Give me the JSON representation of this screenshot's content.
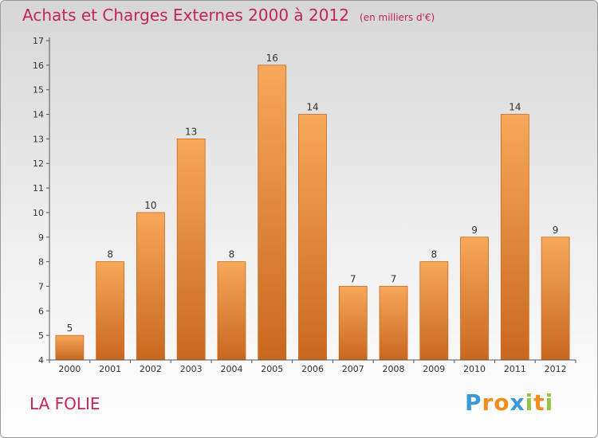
{
  "chart_data": {
    "type": "bar",
    "title": "Achats et Charges Externes 2000 à 2012",
    "subtitle": "(en milliers d'€)",
    "categories": [
      "2000",
      "2001",
      "2002",
      "2003",
      "2004",
      "2005",
      "2006",
      "2007",
      "2008",
      "2009",
      "2010",
      "2011",
      "2012"
    ],
    "values": [
      5,
      8,
      10,
      13,
      8,
      16,
      14,
      7,
      7,
      8,
      9,
      14,
      9
    ],
    "ylim": [
      4,
      17
    ],
    "yticks": [
      "4",
      "5",
      "6",
      "7",
      "8",
      "9",
      "10",
      "11",
      "12",
      "13",
      "14",
      "15",
      "16",
      "17"
    ],
    "grid": false,
    "bar_color": "#e8862f",
    "bar_highlight": "#f7a85a",
    "bar_shadow": "#c8681e"
  },
  "location": "LA FOLIE",
  "logo": {
    "letters": [
      {
        "char": "P",
        "color": "#3a9ad9"
      },
      {
        "char": "r",
        "color": "#f28c1e"
      },
      {
        "char": "o",
        "color": "#f28c1e"
      },
      {
        "char": "x",
        "color": "#3a9ad9"
      },
      {
        "char": "i",
        "color": "#8ec641"
      },
      {
        "char": "t",
        "color": "#f28c1e"
      },
      {
        "char": "i",
        "color": "#8ec641"
      }
    ]
  },
  "colors": {
    "title": "#c4245c",
    "axis": "#555555",
    "text": "#333333"
  }
}
